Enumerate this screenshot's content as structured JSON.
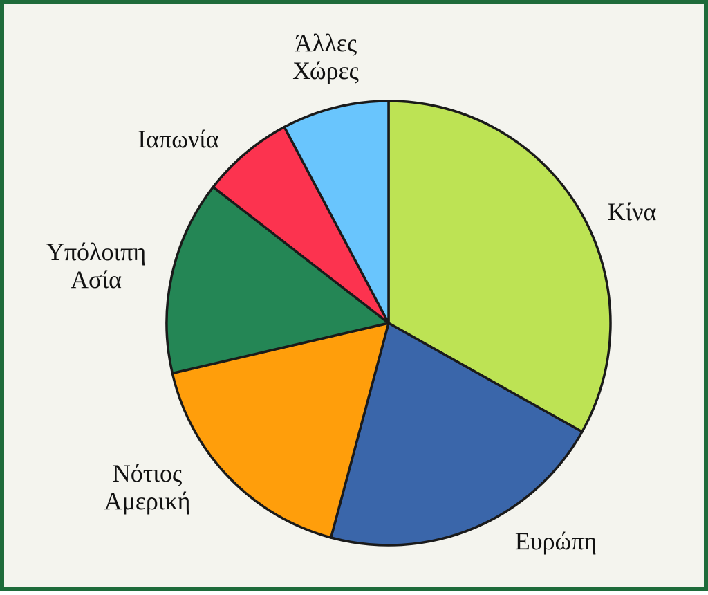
{
  "chart_data": {
    "type": "pie",
    "start": "12 o'clock",
    "direction": "clockwise",
    "slices": [
      {
        "label": [
          "Κίνα"
        ],
        "value": 34.5,
        "color": "#bde354"
      },
      {
        "label": [
          "Ευρώπη"
        ],
        "value": 21.9,
        "color": "#3a66aa"
      },
      {
        "label": [
          "Νότιος",
          "Αμερική"
        ],
        "value": 17.9,
        "color": "#ff9e0b"
      },
      {
        "label": [
          "Υπόλοιπη",
          "Ασία"
        ],
        "value": 14.7,
        "color": "#248655"
      },
      {
        "label": [
          "Ιαπωνία"
        ],
        "value": 7.0,
        "color": "#fc334f"
      },
      {
        "label": [
          "Άλλες",
          "Χώρες"
        ],
        "value": 8.1,
        "color": "#69c5fd"
      }
    ]
  }
}
